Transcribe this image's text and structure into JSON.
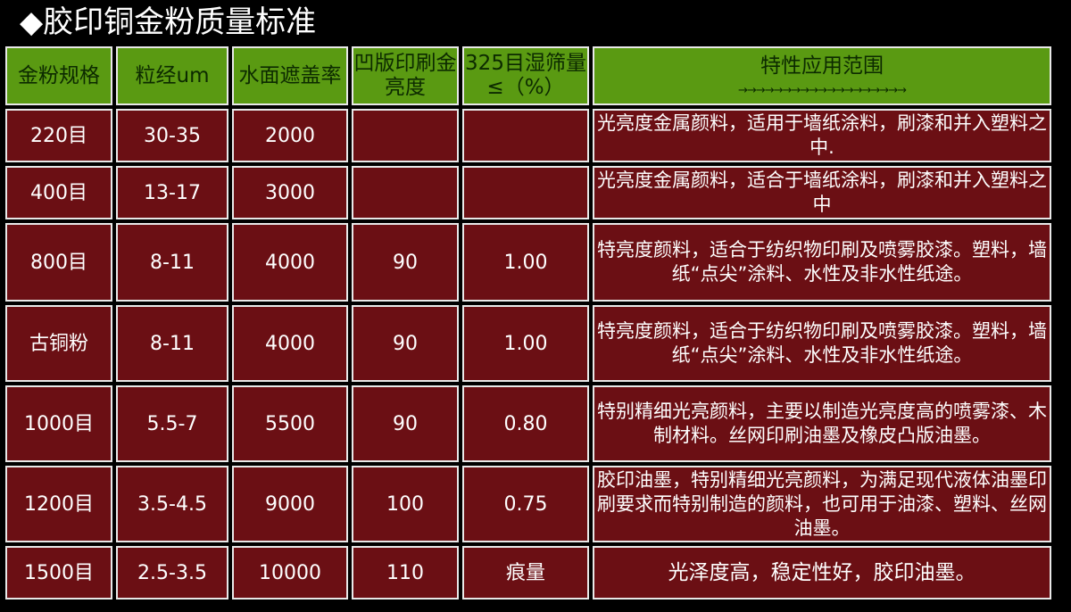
{
  "title": "◆胶印铜金粉质量标准",
  "columns": [
    "金粉规格",
    "粒经um",
    "水面遮盖率",
    "凹版印刷金亮度",
    "325目湿筛量≤（%）",
    "特性应用范围"
  ],
  "arrow_line": "→→→→→→→→→→→→→→→→→→→",
  "colors": {
    "header_bg": "#5a9a12",
    "body_bg": "#6b0f14",
    "border": "#e8e8e8"
  },
  "rows": [
    {
      "spec": "220目",
      "size": "30-35",
      "cover": "2000",
      "bright": "",
      "sieve": "",
      "desc": "光亮度金属颜料，适用于墙纸涂料，刷漆和并入塑料之中."
    },
    {
      "spec": "400目",
      "size": "13-17",
      "cover": "3000",
      "bright": "",
      "sieve": "",
      "desc": "光亮度金属颜料，适合于墙纸涂料，刷漆和并入塑料之中"
    },
    {
      "spec": "800目",
      "size": "8-11",
      "cover": "4000",
      "bright": "90",
      "sieve": "1.00",
      "desc": "特亮度颜料，适合于纺织物印刷及喷雾胶漆。塑料，墙纸“点尖”涂料、水性及非水性纸途。"
    },
    {
      "spec": "古铜粉",
      "size": "8-11",
      "cover": "4000",
      "bright": "90",
      "sieve": "1.00",
      "desc": "特亮度颜料，适合于纺织物印刷及喷雾胶漆。塑料，墙纸“点尖”涂料、水性及非水性纸途。"
    },
    {
      "spec": "1000目",
      "size": "5.5-7",
      "cover": "5500",
      "bright": "90",
      "sieve": "0.80",
      "desc": "特别精细光亮颜料，主要以制造光亮度高的喷雾漆、木制材料。丝网印刷油墨及橡皮凸版油墨。"
    },
    {
      "spec": "1200目",
      "size": "3.5-4.5",
      "cover": "9000",
      "bright": "100",
      "sieve": "0.75",
      "desc": "胶印油墨，特别精细光亮颜料，为满足现代液体油墨印刷要求而特别制造的颜料，也可用于油漆、塑料、丝网油墨。"
    },
    {
      "spec": "1500目",
      "size": "2.5-3.5",
      "cover": "10000",
      "bright": "110",
      "sieve": "痕量",
      "desc": "光泽度高，稳定性好，胶印油墨。"
    }
  ]
}
